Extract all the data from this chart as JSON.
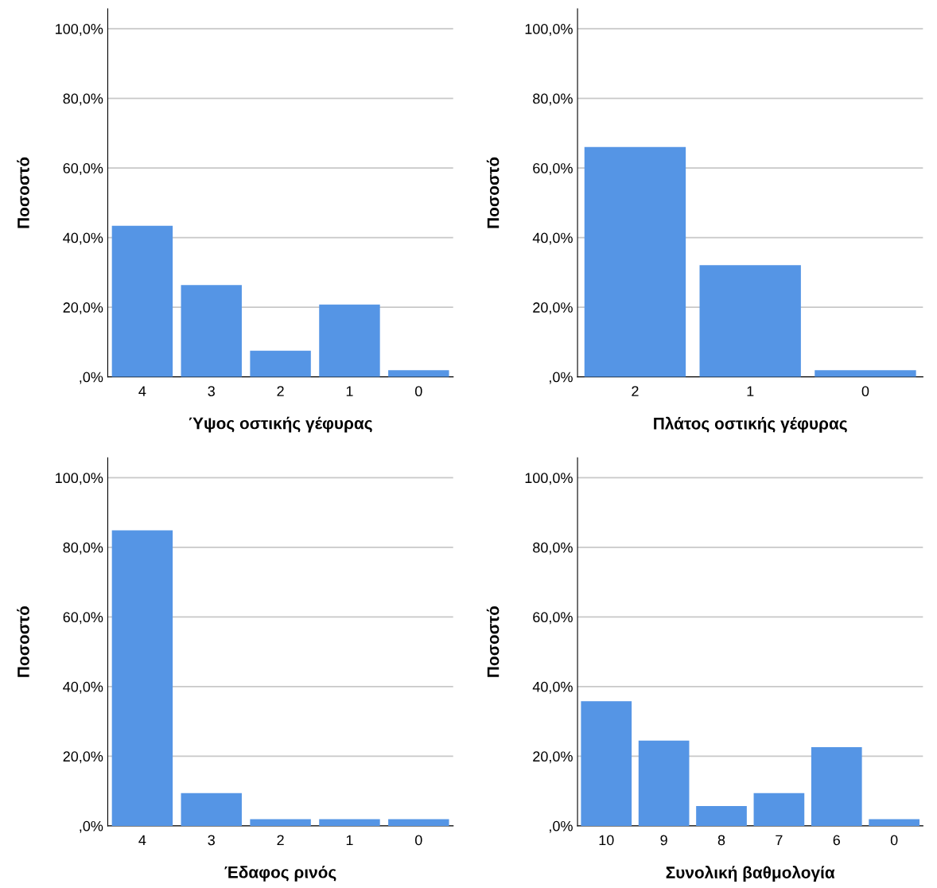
{
  "chart_data": [
    {
      "type": "bar",
      "xlabel": "Ύψος οστικής γέφυρας",
      "ylabel": "Ποσοστό",
      "categories": [
        "4",
        "3",
        "2",
        "1",
        "0"
      ],
      "values": [
        43.4,
        26.4,
        7.5,
        20.8,
        1.9
      ],
      "color": "#5595e5",
      "ylim": [
        0,
        105.7
      ],
      "yticks": [
        {
          "value": 0,
          "label": ",0%"
        },
        {
          "value": 20,
          "label": "20,0%"
        },
        {
          "value": 40,
          "label": "40,0%"
        },
        {
          "value": 60,
          "label": "60,0%"
        },
        {
          "value": 80,
          "label": "80,0%"
        },
        {
          "value": 100,
          "label": "100,0%"
        }
      ],
      "grid": "y"
    },
    {
      "type": "bar",
      "xlabel": "Πλάτος οστικής γέφυρας",
      "ylabel": "Ποσοστό",
      "categories": [
        "2",
        "1",
        "0"
      ],
      "values": [
        66.0,
        32.1,
        1.9
      ],
      "color": "#5595e5",
      "ylim": [
        0,
        105.7
      ],
      "yticks": [
        {
          "value": 0,
          "label": ",0%"
        },
        {
          "value": 20,
          "label": "20,0%"
        },
        {
          "value": 40,
          "label": "40,0%"
        },
        {
          "value": 60,
          "label": "60,0%"
        },
        {
          "value": 80,
          "label": "80,0%"
        },
        {
          "value": 100,
          "label": "100,0%"
        }
      ],
      "grid": "y"
    },
    {
      "type": "bar",
      "xlabel": "Έδαφος ρινός",
      "ylabel": "Ποσοστό",
      "categories": [
        "4",
        "3",
        "2",
        "1",
        "0"
      ],
      "values": [
        84.9,
        9.4,
        1.9,
        1.9,
        1.9
      ],
      "color": "#5595e5",
      "ylim": [
        0,
        105.7
      ],
      "yticks": [
        {
          "value": 0,
          "label": ",0%"
        },
        {
          "value": 20,
          "label": "20,0%"
        },
        {
          "value": 40,
          "label": "40,0%"
        },
        {
          "value": 60,
          "label": "60,0%"
        },
        {
          "value": 80,
          "label": "80,0%"
        },
        {
          "value": 100,
          "label": "100,0%"
        }
      ],
      "grid": "y"
    },
    {
      "type": "bar",
      "xlabel": "Συνολική βαθμολογία",
      "ylabel": "Ποσοστό",
      "categories": [
        "10",
        "9",
        "8",
        "7",
        "6",
        "0"
      ],
      "values": [
        35.8,
        24.5,
        5.7,
        9.4,
        22.6,
        1.9
      ],
      "color": "#5595e5",
      "ylim": [
        0,
        105.7
      ],
      "yticks": [
        {
          "value": 0,
          "label": ",0%"
        },
        {
          "value": 20,
          "label": "20,0%"
        },
        {
          "value": 40,
          "label": "40,0%"
        },
        {
          "value": 60,
          "label": "60,0%"
        },
        {
          "value": 80,
          "label": "80,0%"
        },
        {
          "value": 100,
          "label": "100,0%"
        }
      ],
      "grid": "y"
    }
  ]
}
